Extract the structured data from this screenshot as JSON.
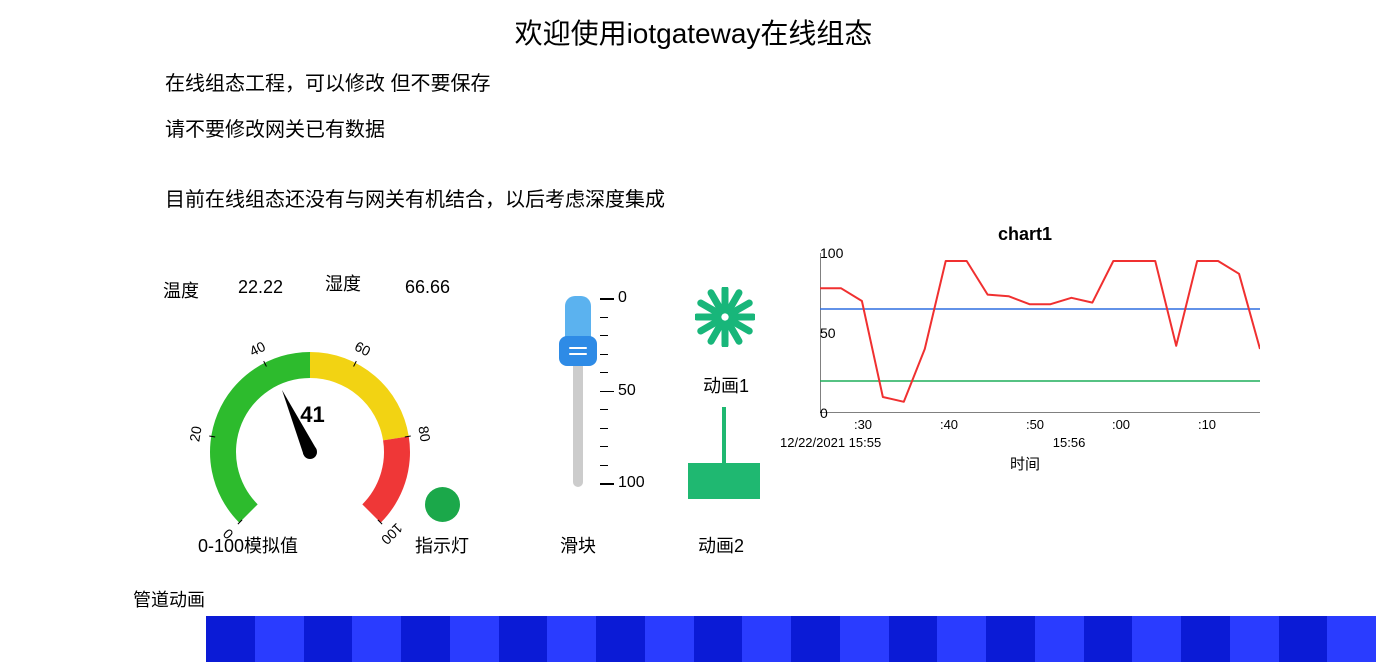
{
  "title": "欢迎使用iotgateway在线组态",
  "info1": "在线组态工程，可以修改 但不要保存",
  "info2": "请不要修改网关已有数据",
  "info3": "目前在线组态还没有与网关有机结合，以后考虑深度集成",
  "temp": {
    "label": "温度",
    "value": "22.22"
  },
  "humi": {
    "label": "湿度",
    "value": "66.66"
  },
  "gauge": {
    "caption": "0-100模拟值",
    "value": 41,
    "min": 0,
    "max": 100,
    "start_angle_deg": -225,
    "end_angle_deg": 45,
    "ticks": [
      0,
      20,
      40,
      60,
      80,
      100
    ],
    "segments": [
      {
        "from": 0,
        "to": 50,
        "color": "#2dbb2d"
      },
      {
        "from": 50,
        "to": 80,
        "color": "#f2d313"
      },
      {
        "from": 80,
        "to": 100,
        "color": "#ef3737"
      }
    ],
    "arc_width": 26,
    "needle_color": "#000000",
    "bg": "#ffffff"
  },
  "lamp": {
    "caption": "指示灯",
    "color": "#1ba84a",
    "on": true
  },
  "slider": {
    "caption": "滑块",
    "min": 0,
    "max": 100,
    "value": 25,
    "inverted": true,
    "majors": [
      0,
      50,
      100
    ],
    "handle_top_color": "#5bb2ef",
    "handle_grip_color": "#2e8be6",
    "track_color": "#cccccc"
  },
  "anim1": {
    "caption": "动画1",
    "icon": "burst",
    "color": "#18b67a"
  },
  "anim2": {
    "caption": "动画2",
    "color": "#1fb871",
    "level": 0.58
  },
  "chart": {
    "title": "chart1",
    "type": "line",
    "xlabel": "时间",
    "ylim": [
      0,
      100
    ],
    "yticks": [
      0,
      50,
      100
    ],
    "xticks": [
      ":30",
      ":40",
      ":50",
      ":00",
      ":10"
    ],
    "date_row": [
      {
        "text": "12/22/2021 15:55",
        "x_frac": 0.0
      },
      {
        "text": "15:56",
        "x_frac": 0.62
      }
    ],
    "series": {
      "color": "#f03030",
      "width": 2,
      "y": [
        78,
        78,
        70,
        10,
        7,
        40,
        95,
        95,
        74,
        73,
        68,
        68,
        72,
        69,
        95,
        95,
        95,
        42,
        95,
        95,
        87,
        40
      ]
    },
    "hlines": [
      {
        "y": 65,
        "color": "#2f6fe0",
        "width": 1.5
      },
      {
        "y": 20,
        "color": "#1fae5a",
        "width": 1.5
      }
    ],
    "axis_color": "#000000",
    "bg": "#ffffff"
  },
  "pipe": {
    "caption": "管道动画",
    "colors": [
      "#0b1bd6",
      "#2a3cff"
    ],
    "segments": 24
  }
}
